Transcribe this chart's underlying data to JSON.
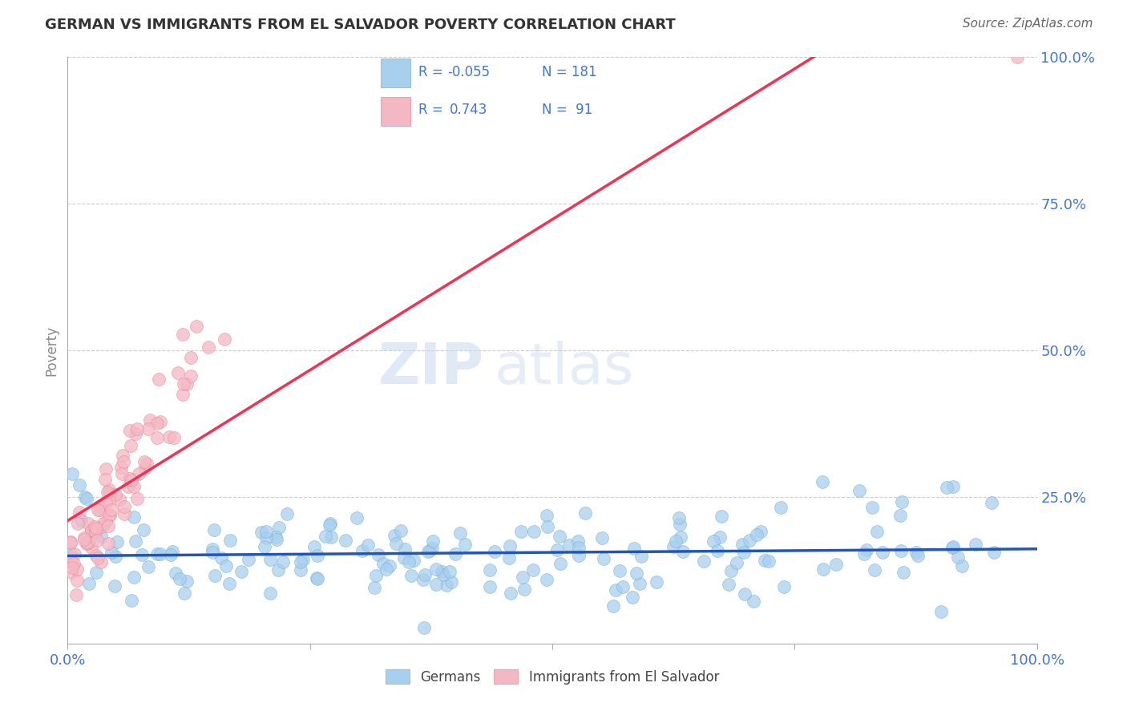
{
  "title": "GERMAN VS IMMIGRANTS FROM EL SALVADOR POVERTY CORRELATION CHART",
  "source": "Source: ZipAtlas.com",
  "ylabel": "Poverty",
  "watermark_zip": "ZIP",
  "watermark_atlas": "atlas",
  "legend_r_german": "-0.055",
  "legend_n_german": "181",
  "legend_r_salvador": "0.743",
  "legend_n_salvador": "91",
  "background_color": "#ffffff",
  "grid_color": "#cccccc",
  "blue_dot_color": "#A8CFEE",
  "pink_dot_color": "#F4B8C4",
  "blue_dot_edge": "#7AAFD4",
  "pink_dot_edge": "#E88898",
  "line_blue": "#2255BB",
  "line_pink": "#EE3355",
  "text_blue": "#4477CC",
  "title_color": "#333333",
  "source_color": "#666666"
}
